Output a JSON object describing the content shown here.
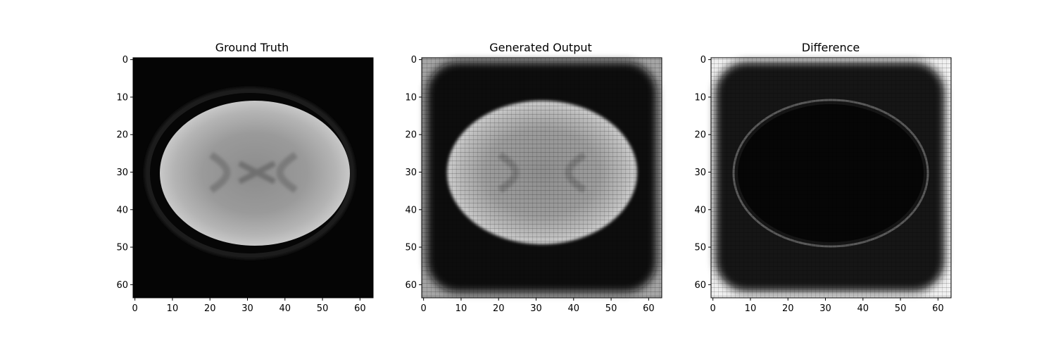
{
  "chart_data": [
    {
      "type": "heatmap",
      "title": "Ground Truth",
      "colormap": "gray",
      "image_size": [
        64,
        64
      ],
      "xlim": [
        -0.5,
        63.5
      ],
      "ylim": [
        63.5,
        -0.5
      ],
      "xticks": [
        0,
        10,
        20,
        30,
        40,
        50,
        60
      ],
      "yticks": [
        0,
        10,
        20,
        30,
        40,
        50,
        60
      ],
      "content": "brain-slice"
    },
    {
      "type": "heatmap",
      "title": "Generated Output",
      "colormap": "gray",
      "image_size": [
        64,
        64
      ],
      "xlim": [
        -0.5,
        63.5
      ],
      "ylim": [
        63.5,
        -0.5
      ],
      "xticks": [
        0,
        10,
        20,
        30,
        40,
        50,
        60
      ],
      "yticks": [
        0,
        10,
        20,
        30,
        40,
        50,
        60
      ],
      "content": "generated-brain-with-dark-frame"
    },
    {
      "type": "heatmap",
      "title": "Difference",
      "colormap": "gray",
      "image_size": [
        64,
        64
      ],
      "xlim": [
        -0.5,
        63.5
      ],
      "ylim": [
        63.5,
        -0.5
      ],
      "xticks": [
        0,
        10,
        20,
        30,
        40,
        50,
        60
      ],
      "yticks": [
        0,
        10,
        20,
        30,
        40,
        50,
        60
      ],
      "content": "difference-map"
    }
  ]
}
